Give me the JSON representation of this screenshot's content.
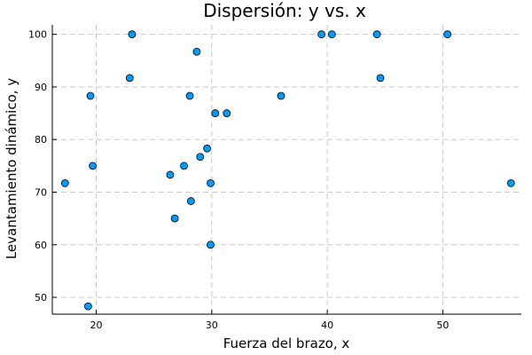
{
  "chart_data": {
    "type": "scatter",
    "title": "Dispersión: y vs. x",
    "xlabel": "Fuerza del brazo, x",
    "ylabel": "Levantamiento dinámico, y",
    "xlim": [
      16.2,
      56.8
    ],
    "ylim": [
      46.8,
      101.8
    ],
    "xticks": [
      20,
      30,
      40,
      50
    ],
    "yticks": [
      50,
      60,
      70,
      80,
      90,
      100
    ],
    "xtick_labels": [
      "20",
      "30",
      "40",
      "50"
    ],
    "ytick_labels": [
      "50",
      "60",
      "70",
      "80",
      "90",
      "100"
    ],
    "grid": true,
    "legend": "none",
    "point_color": "#009af9",
    "series": [
      {
        "x": [
          17.3,
          19.3,
          19.5,
          19.7,
          22.9,
          23.1,
          26.4,
          26.8,
          27.6,
          28.1,
          28.2,
          28.7,
          29.0,
          29.6,
          29.9,
          29.9,
          30.3,
          31.3,
          36.0,
          39.5,
          40.4,
          44.3,
          44.6,
          50.4,
          55.9
        ],
        "y": [
          71.7,
          48.3,
          88.3,
          75.0,
          91.7,
          100.0,
          73.3,
          65.0,
          75.0,
          88.3,
          68.3,
          96.7,
          76.7,
          78.3,
          60.0,
          71.7,
          85.0,
          85.0,
          88.3,
          100.0,
          100.0,
          100.0,
          91.7,
          100.0,
          71.7
        ]
      }
    ]
  }
}
